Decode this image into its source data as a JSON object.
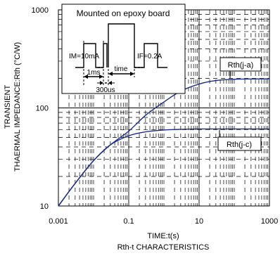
{
  "chart_data": {
    "type": "line",
    "title": "",
    "xlabel": "TIME:t(s)",
    "ylabel_lines": [
      "TRANSIENT",
      "THAERMAL IMPEDANCE:Rth (°C/W)"
    ],
    "caption": "Rth-t CHARACTERISTICS",
    "x_scale": "log",
    "y_scale": "log",
    "xlim": [
      0.001,
      1000
    ],
    "ylim": [
      10,
      1000
    ],
    "x_ticks": [
      "0.001",
      "0.1",
      "10",
      "1000"
    ],
    "x_tick_values": [
      0.001,
      0.1,
      10,
      1000
    ],
    "y_ticks": [
      "10",
      "100",
      "1000"
    ],
    "y_tick_values": [
      10,
      100,
      1000
    ],
    "grid": true,
    "series": [
      {
        "name": "Rth(j-a)",
        "color": "#1c2a8a",
        "points": [
          [
            0.001,
            10
          ],
          [
            0.003,
            17
          ],
          [
            0.01,
            29
          ],
          [
            0.03,
            42
          ],
          [
            0.1,
            58
          ],
          [
            0.3,
            84
          ],
          [
            1,
            115
          ],
          [
            3,
            148
          ],
          [
            10,
            175
          ],
          [
            30,
            190
          ],
          [
            100,
            196
          ],
          [
            1000,
            198
          ]
        ]
      },
      {
        "name": "Rth(j-c)",
        "color": "#1c2a8a",
        "points": [
          [
            0.001,
            10
          ],
          [
            0.003,
            17
          ],
          [
            0.01,
            29
          ],
          [
            0.03,
            42
          ],
          [
            0.1,
            52
          ],
          [
            0.3,
            57
          ],
          [
            1,
            59.5
          ],
          [
            3,
            60.5
          ],
          [
            10,
            61
          ],
          [
            100,
            61
          ],
          [
            1000,
            61
          ]
        ]
      }
    ],
    "inset": {
      "title": "Mounted on epoxy board",
      "labels": {
        "im": "IM=10mA",
        "if": "IF=0.2A",
        "ms": "1ms",
        "time": "time",
        "us": "300us"
      }
    }
  }
}
